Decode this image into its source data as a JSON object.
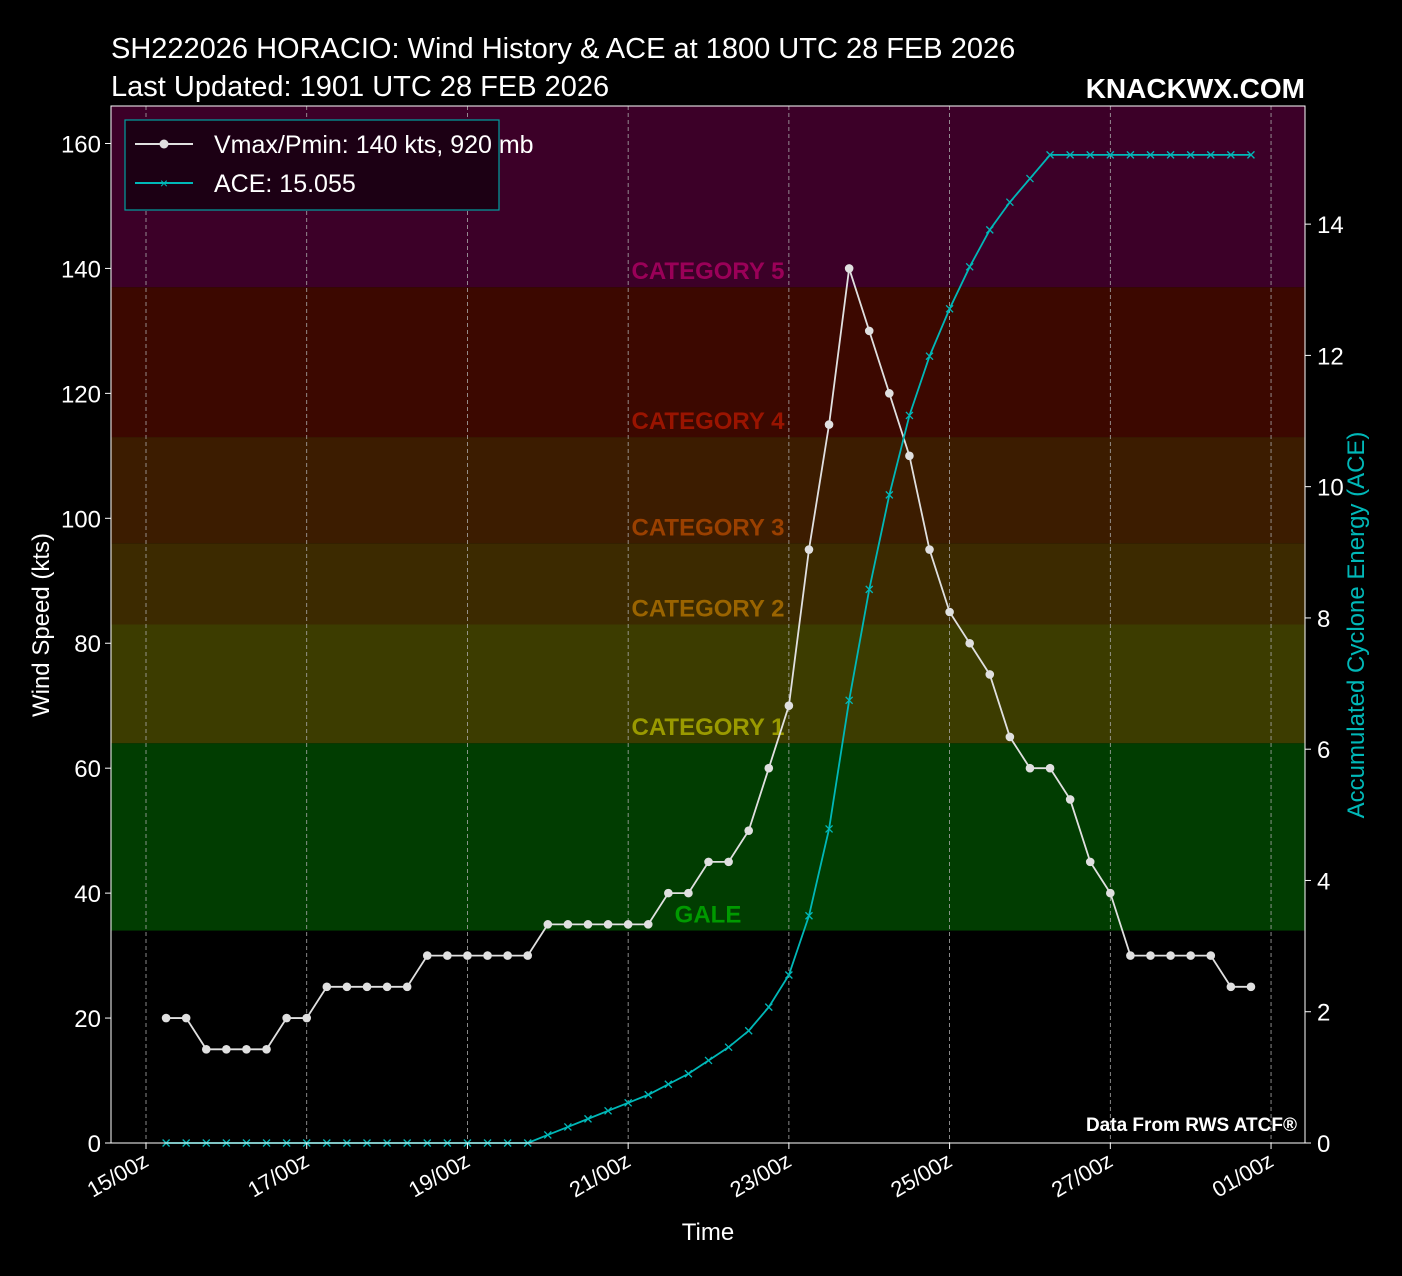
{
  "header": {
    "title_line1": "SH222026 HORACIO: Wind History & ACE at 1800 UTC 28 FEB 2026",
    "title_line2": "Last Updated: 1901 UTC 28 FEB 2026",
    "brand": "KNACKWX.COM",
    "credit": "Data From RWS ATCF®"
  },
  "chart_data": {
    "type": "line",
    "title": "SH222026 HORACIO: Wind History & ACE at 1800 UTC 28 FEB 2026",
    "xlabel": "Time",
    "ylabel": "Wind Speed (kts)",
    "y2label": "Accumulated Cyclone Energy (ACE)",
    "ylim": [
      0,
      166
    ],
    "y2lim": [
      0,
      15.8
    ],
    "xlim_hours_from_15_00z": [
      -8,
      347
    ],
    "yticks": [
      0,
      20,
      40,
      60,
      80,
      100,
      120,
      140,
      160
    ],
    "y2ticks": [
      0,
      2,
      4,
      6,
      8,
      10,
      12,
      14
    ],
    "xticks": [
      {
        "label": "15/00z",
        "hours": 0
      },
      {
        "label": "17/00z",
        "hours": 48
      },
      {
        "label": "19/00z",
        "hours": 96
      },
      {
        "label": "21/00z",
        "hours": 144
      },
      {
        "label": "23/00z",
        "hours": 192
      },
      {
        "label": "25/00z",
        "hours": 240
      },
      {
        "label": "27/00z",
        "hours": 288
      },
      {
        "label": "01/00z",
        "hours": 336
      }
    ],
    "grid": "vertical-dashed",
    "legend_position": "top-left",
    "legend": [
      "Vmax/Pmin: 140 kts, 920 mb",
      "ACE: 15.055"
    ],
    "x_start_hours": 6,
    "x_step_hours": 6,
    "series": [
      {
        "name": "Vmax/Pmin: 140 kts, 920 mb",
        "color": "#e0e0e0",
        "marker": "circle",
        "axis": "left",
        "values": [
          20,
          20,
          15,
          15,
          15,
          15,
          20,
          20,
          25,
          25,
          25,
          25,
          25,
          30,
          30,
          30,
          30,
          30,
          30,
          35,
          35,
          35,
          35,
          35,
          35,
          40,
          40,
          45,
          45,
          50,
          60,
          70,
          95,
          115,
          140,
          130,
          120,
          110,
          95,
          85,
          80,
          75,
          65,
          60,
          60,
          55,
          45,
          40,
          30,
          30,
          30,
          30,
          30,
          25,
          25
        ]
      },
      {
        "name": "ACE: 15.055",
        "color": "#00b8b8",
        "marker": "x",
        "axis": "right",
        "values": [
          0,
          0,
          0,
          0,
          0,
          0,
          0,
          0,
          0,
          0,
          0,
          0,
          0,
          0,
          0,
          0,
          0,
          0,
          0,
          0.1225,
          0.245,
          0.3675,
          0.49,
          0.6125,
          0.735,
          0.895,
          1.055,
          1.2575,
          1.46,
          1.71,
          2.07,
          2.56,
          3.4625,
          4.785,
          6.745,
          8.435,
          9.875,
          11.085,
          11.9875,
          12.71,
          13.35,
          13.9125,
          14.335,
          14.695,
          15.055,
          15.055,
          15.055,
          15.055,
          15.055,
          15.055,
          15.055,
          15.055,
          15.055,
          15.055,
          15.055
        ]
      }
    ],
    "bands": [
      {
        "label": "GALE",
        "from": 34,
        "to": 64,
        "fill": "#013d01",
        "text": "#009a00"
      },
      {
        "label": "CATEGORY 1",
        "from": 64,
        "to": 83,
        "fill": "#3c3c00",
        "text": "#9a9a00"
      },
      {
        "label": "CATEGORY 2",
        "from": 83,
        "to": 96,
        "fill": "#3c2a00",
        "text": "#9a6400"
      },
      {
        "label": "CATEGORY 3",
        "from": 96,
        "to": 113,
        "fill": "#3c1c00",
        "text": "#9a4000"
      },
      {
        "label": "CATEGORY 4",
        "from": 113,
        "to": 137,
        "fill": "#3c0800",
        "text": "#9a1400"
      },
      {
        "label": "CATEGORY 5",
        "from": 137,
        "to": 166,
        "fill": "#3c0028",
        "text": "#9a0058"
      }
    ]
  }
}
